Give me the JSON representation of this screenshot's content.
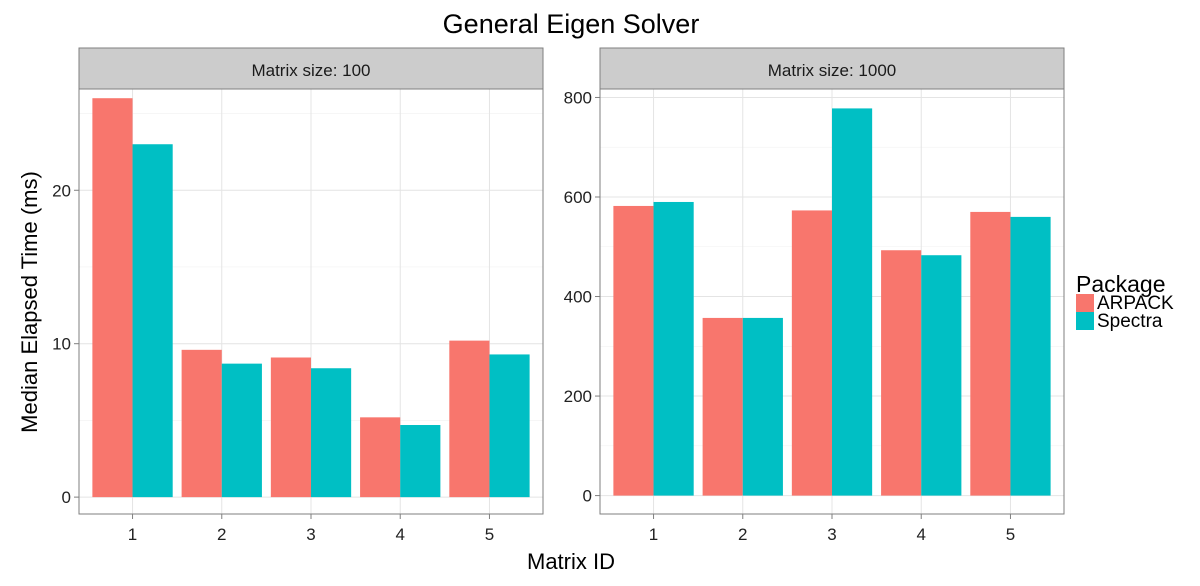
{
  "chart_data": {
    "type": "bar",
    "title": "General Eigen Solver",
    "xlabel": "Matrix ID",
    "ylabel": "Median Elapsed Time (ms)",
    "categories": [
      "1",
      "2",
      "3",
      "4",
      "5"
    ],
    "legend": {
      "title": "Package",
      "position": "right",
      "entries": [
        {
          "name": "ARPACK",
          "color": "#F8766D"
        },
        {
          "name": "Spectra",
          "color": "#00BFC4"
        }
      ]
    },
    "grid": true,
    "panels": [
      {
        "label": "Matrix size: 100",
        "ylim": [
          -1.1,
          26.6
        ],
        "yticks": [
          0,
          10,
          20
        ],
        "series": [
          {
            "name": "ARPACK",
            "values": [
              26.0,
              9.6,
              9.1,
              5.2,
              10.2
            ]
          },
          {
            "name": "Spectra",
            "values": [
              23.0,
              8.7,
              8.4,
              4.7,
              9.3
            ]
          }
        ]
      },
      {
        "label": "Matrix size: 1000",
        "ylim": [
          -37,
          817
        ],
        "yticks": [
          0,
          200,
          400,
          600,
          800
        ],
        "series": [
          {
            "name": "ARPACK",
            "values": [
              582,
              357,
              573,
              493,
              570
            ]
          },
          {
            "name": "Spectra",
            "values": [
              590,
              357,
              778,
              483,
              560
            ]
          }
        ]
      }
    ]
  }
}
